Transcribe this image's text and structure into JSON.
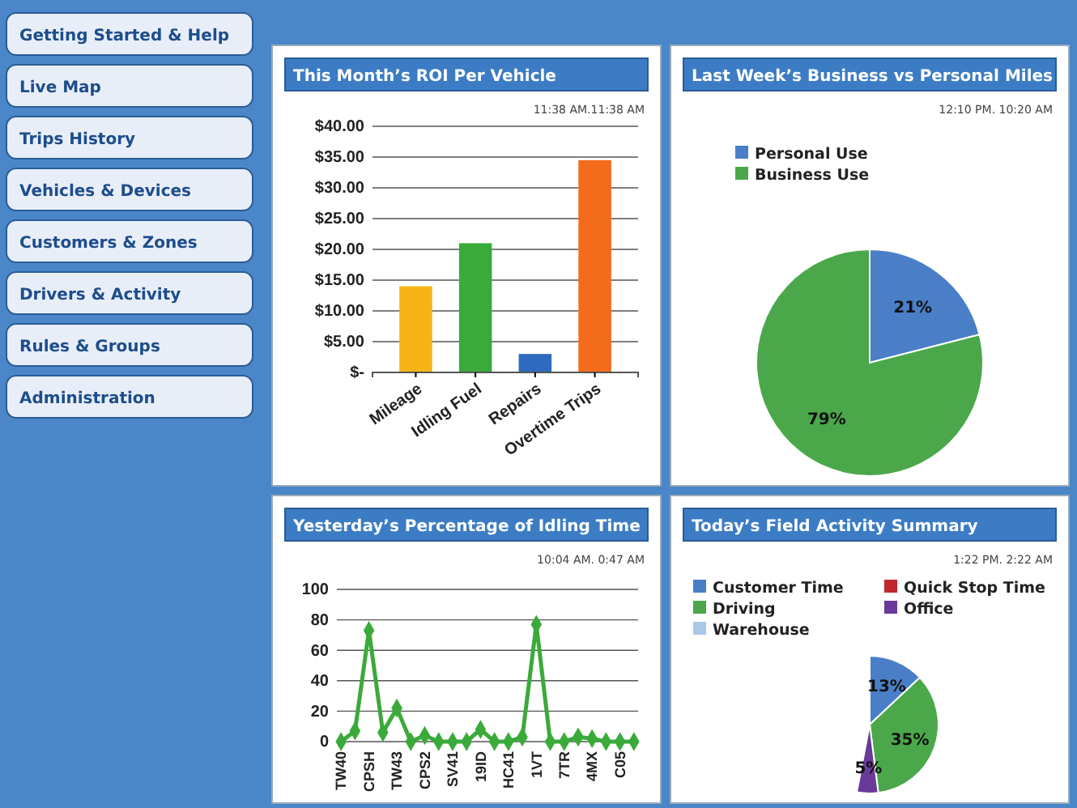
{
  "chart_data": [
    {
      "type": "other",
      "annotations": [
        "Getting Started & Help",
        "Live Map",
        "Trips History",
        "Vehicles & Devices",
        "Customers & Zones",
        "Drivers & Activity",
        "Rules & Groups",
        "Administration"
      ]
    },
    {
      "type": "bar",
      "title": "This Month’s ROI Per Vehicle",
      "annotations": [
        "11:38 AM.11:38 AM"
      ],
      "categories": [
        "Mileage",
        "Idling Fuel",
        "Repairs",
        "Overtime Trips"
      ],
      "values": [
        14,
        21,
        3,
        34.5
      ],
      "colors": [
        "#f5b316",
        "#3aaa3a",
        "#2e6bc0",
        "#f26c1c"
      ],
      "ylim": [
        0,
        40
      ],
      "yticks": [
        {
          "value": 0,
          "label": "$-"
        },
        {
          "value": 5,
          "label": "$5.00"
        },
        {
          "value": 10,
          "label": "$10.00"
        },
        {
          "value": 15,
          "label": "$15.00"
        },
        {
          "value": 20,
          "label": "$20.00"
        },
        {
          "value": 25,
          "label": "$25.00"
        },
        {
          "value": 30,
          "label": "$30.00"
        },
        {
          "value": 35,
          "label": "$35.00"
        },
        {
          "value": 40,
          "label": "$40.00"
        }
      ],
      "grid": "y"
    },
    {
      "type": "pie",
      "title": "Last Week’s Business vs Personal Miles",
      "annotations": [
        "12:10 PM. 10:20 AM"
      ],
      "categories": [
        "Personal Use",
        "Business Use"
      ],
      "values": [
        21,
        79
      ],
      "colors": [
        "#4a7fc8",
        "#4aa84a"
      ],
      "value_labels": [
        "21%",
        "79%"
      ],
      "legend": "top left"
    },
    {
      "type": "line",
      "title": "Yesterday’s Percentage of Idling Time",
      "annotations": [
        "10:04 AM. 0:47 AM"
      ],
      "categories": [
        "TW40",
        null,
        "CPSH",
        null,
        "TW43",
        null,
        "CPS2",
        null,
        "SV41",
        null,
        "19ID",
        null,
        "HC41",
        null,
        "1VT",
        null,
        "7TR",
        null,
        "4MX",
        null,
        "C05",
        null
      ],
      "values": [
        0,
        7,
        73,
        6,
        22,
        0,
        4,
        0,
        0,
        0,
        8,
        0,
        0,
        3,
        77,
        0,
        0,
        3,
        2,
        0,
        0,
        0
      ],
      "color": "#3aaa3a",
      "marker": "diamond",
      "ylim": [
        0,
        100
      ],
      "yticks": [
        0,
        20,
        40,
        60,
        80,
        100
      ],
      "grid": "y"
    },
    {
      "type": "pie",
      "title": "Today’s Field Activity Summary",
      "annotations": [
        "1:22 PM. 2:22 AM"
      ],
      "categories": [
        "Customer Time",
        "Driving",
        "Warehouse",
        "Quick Stop Time",
        "Office"
      ],
      "values": [
        13,
        35,
        null,
        null,
        5
      ],
      "colors": [
        "#4a7fc8",
        "#4aa84a",
        "#a8c8e8",
        "#c0282e",
        "#6a3a9a"
      ],
      "value_labels": [
        "13%",
        "35%",
        null,
        null,
        "5%"
      ],
      "legend": "top"
    }
  ]
}
